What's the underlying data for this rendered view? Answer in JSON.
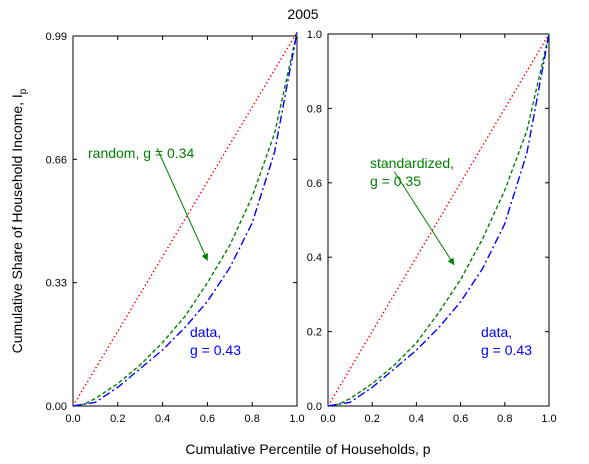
{
  "figure": {
    "title": "2005",
    "xlabel": "Cumulative Percentile of Households, p",
    "ylabel": "Cumulative Share of Household Income, I",
    "ylabel_subscript": "p"
  },
  "colors": {
    "equality_line": "#ff0000",
    "random_curve": "#008000",
    "data_curve": "#0000ff",
    "axes": "#000000"
  },
  "chart_data": [
    {
      "type": "line",
      "panel": "left",
      "xlim": [
        0,
        1
      ],
      "ylim": [
        0,
        0.99
      ],
      "xticks": [
        "0.0",
        "0.2",
        "0.4",
        "0.6",
        "0.8",
        "1.0"
      ],
      "yticks": [
        "0.00",
        "0.33",
        "0.66",
        "0.99"
      ],
      "ytick_values": [
        0,
        0.33,
        0.66,
        0.99
      ],
      "grid": false,
      "series": [
        {
          "style": "dotted",
          "color": "#ff0000",
          "x": [
            0,
            1
          ],
          "y": [
            0,
            1
          ]
        },
        {
          "style": "dashed",
          "color": "#008000",
          "x": [
            0,
            0.05,
            0.1,
            0.2,
            0.3,
            0.4,
            0.5,
            0.6,
            0.7,
            0.8,
            0.9,
            1.0
          ],
          "y": [
            0,
            0.005,
            0.02,
            0.06,
            0.11,
            0.17,
            0.24,
            0.33,
            0.43,
            0.56,
            0.73,
            1.0
          ]
        },
        {
          "style": "dash-dot",
          "color": "#0000ff",
          "x": [
            0,
            0.1,
            0.15,
            0.2,
            0.3,
            0.4,
            0.5,
            0.6,
            0.7,
            0.8,
            0.9,
            0.95,
            1.0
          ],
          "y": [
            0,
            0.01,
            0.03,
            0.05,
            0.1,
            0.15,
            0.21,
            0.28,
            0.37,
            0.49,
            0.68,
            0.84,
            1.0
          ]
        }
      ],
      "annotations": [
        {
          "lines": [
            "random, g = 0.34"
          ],
          "color": "#008000",
          "arrow_tail": [
            0.375,
            0.69
          ],
          "arrow_head": [
            0.6,
            0.39
          ]
        },
        {
          "lines": [
            "data,",
            "g = 0.43"
          ],
          "color": "#0000ff"
        }
      ]
    },
    {
      "type": "line",
      "panel": "right",
      "xlim": [
        0,
        1
      ],
      "ylim": [
        0,
        1
      ],
      "xticks": [
        "0.0",
        "0.2",
        "0.4",
        "0.6",
        "0.8",
        "1.0"
      ],
      "yticks": [
        "0.0",
        "0.2",
        "0.4",
        "0.6",
        "0.8",
        "1.0"
      ],
      "ytick_values": [
        0,
        0.2,
        0.4,
        0.6,
        0.8,
        1.0
      ],
      "grid": false,
      "series": [
        {
          "style": "dotted",
          "color": "#ff0000",
          "x": [
            0,
            1
          ],
          "y": [
            0,
            1
          ]
        },
        {
          "style": "dashed",
          "color": "#008000",
          "x": [
            0,
            0.05,
            0.1,
            0.2,
            0.3,
            0.4,
            0.5,
            0.6,
            0.7,
            0.8,
            0.9,
            1.0
          ],
          "y": [
            0,
            0.005,
            0.02,
            0.06,
            0.11,
            0.17,
            0.25,
            0.34,
            0.45,
            0.58,
            0.74,
            1.0
          ]
        },
        {
          "style": "dash-dot",
          "color": "#0000ff",
          "x": [
            0,
            0.1,
            0.15,
            0.2,
            0.3,
            0.4,
            0.5,
            0.6,
            0.7,
            0.8,
            0.9,
            0.95,
            1.0
          ],
          "y": [
            0,
            0.01,
            0.03,
            0.05,
            0.1,
            0.15,
            0.21,
            0.28,
            0.37,
            0.49,
            0.68,
            0.84,
            1.0
          ]
        }
      ],
      "annotations": [
        {
          "lines": [
            "standardized,",
            "g = 0.35"
          ],
          "color": "#008000",
          "arrow_tail": [
            0.3,
            0.63
          ],
          "arrow_head": [
            0.57,
            0.38
          ]
        },
        {
          "lines": [
            "data,",
            "g = 0.43"
          ],
          "color": "#0000ff"
        }
      ]
    }
  ]
}
